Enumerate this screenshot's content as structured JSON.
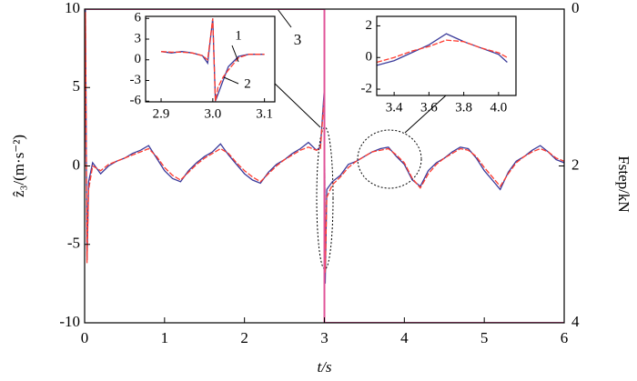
{
  "chart_data": [
    {
      "type": "line",
      "x_label": "t/s",
      "y_label": "ẑ₃/(m·s⁻²)",
      "y2_label": "Fstep/kN",
      "xlim": [
        0,
        6
      ],
      "ylim": [
        -10,
        10
      ],
      "y2lim": [
        4,
        0
      ],
      "xticks": [
        0,
        1,
        2,
        3,
        4,
        5,
        6
      ],
      "yticks": [
        -10,
        -5,
        0,
        5,
        10
      ],
      "y2ticks": [
        0,
        2,
        4
      ],
      "x": [
        0,
        0.01,
        0.03,
        0.05,
        0.1,
        0.2,
        0.3,
        0.4,
        0.5,
        0.6,
        0.7,
        0.8,
        0.9,
        1.0,
        1.1,
        1.2,
        1.3,
        1.4,
        1.5,
        1.6,
        1.7,
        1.8,
        1.9,
        2.0,
        2.1,
        2.2,
        2.3,
        2.4,
        2.5,
        2.6,
        2.7,
        2.8,
        2.9,
        2.95,
        3.0,
        3.01,
        3.03,
        3.1,
        3.2,
        3.3,
        3.4,
        3.5,
        3.6,
        3.7,
        3.8,
        3.9,
        4.0,
        4.1,
        4.2,
        4.3,
        4.4,
        4.5,
        4.6,
        4.7,
        4.8,
        4.9,
        5.0,
        5.1,
        5.2,
        5.3,
        5.4,
        5.5,
        5.6,
        5.7,
        5.8,
        5.9,
        6.0
      ],
      "series": [
        {
          "color": "#3a3a9a",
          "values": [
            0,
            10,
            -6,
            -1,
            0.2,
            -0.5,
            0,
            0.3,
            0.5,
            0.8,
            1.0,
            1.3,
            0.5,
            -0.3,
            -0.8,
            -1.0,
            -0.3,
            0.2,
            0.6,
            0.9,
            1.4,
            0.7,
            0.1,
            -0.5,
            -0.9,
            -1.1,
            -0.4,
            0.1,
            0.4,
            0.8,
            1.1,
            1.5,
            1.0,
            1.2,
            5.0,
            -7.5,
            -1.5,
            -1.0,
            -0.6,
            0.1,
            0.3,
            0.6,
            0.9,
            1.1,
            1.2,
            0.6,
            0.1,
            -0.9,
            -1.3,
            -0.3,
            0.2,
            0.5,
            0.9,
            1.2,
            1.1,
            0.5,
            -0.3,
            -0.9,
            -1.5,
            -0.4,
            0.3,
            0.6,
            1.0,
            1.3,
            0.9,
            0.4,
            0.2
          ]
        },
        {
          "color": "#ff3b2f",
          "dashed": true,
          "values": [
            0,
            9.8,
            -6.2,
            -1.5,
            0,
            -0.3,
            0.1,
            0.3,
            0.5,
            0.7,
            0.9,
            1.1,
            0.6,
            -0.1,
            -0.6,
            -0.9,
            -0.4,
            0.1,
            0.5,
            0.8,
            1.1,
            0.8,
            0.2,
            -0.3,
            -0.7,
            -1.0,
            -0.5,
            0,
            0.4,
            0.7,
            1.0,
            1.2,
            1.0,
            1.1,
            4.5,
            -6.8,
            -2.0,
            -1.2,
            -0.7,
            -0.1,
            0.3,
            0.6,
            0.9,
            1.0,
            1.1,
            0.7,
            0.2,
            -0.8,
            -1.4,
            -0.5,
            0.1,
            0.5,
            0.8,
            1.1,
            1.0,
            0.6,
            -0.1,
            -0.7,
            -1.3,
            -0.5,
            0.2,
            0.6,
            0.9,
            1.1,
            0.9,
            0.5,
            0.3
          ]
        },
        {
          "name": "3",
          "color": "#e0559a",
          "axis": "y2",
          "x": [
            0,
            3,
            3,
            6
          ],
          "values": [
            0,
            0,
            4,
            4
          ]
        }
      ]
    },
    {
      "type": "line",
      "xlim": [
        2.87,
        3.12
      ],
      "ylim": [
        -6.1,
        6.3
      ],
      "xticks": [
        2.9,
        {
          "value": 3,
          "label": "3.0"
        },
        3.1
      ],
      "yticks": [
        -6,
        -3,
        0,
        3,
        6
      ],
      "x": [
        2.9,
        2.92,
        2.94,
        2.96,
        2.98,
        2.99,
        3.0,
        3.005,
        3.01,
        3.02,
        3.03,
        3.05,
        3.07,
        3.1
      ],
      "series": [
        {
          "name": "2",
          "color": "#3a3a9a",
          "values": [
            1.2,
            1.0,
            1.2,
            1.0,
            0.6,
            -0.5,
            6,
            -6,
            -5,
            -3,
            -1,
            0.5,
            0.8,
            0.8
          ]
        },
        {
          "name": "1",
          "color": "#ff3b2f",
          "dashed": true,
          "values": [
            1.2,
            1.1,
            1.1,
            1.0,
            0.6,
            0,
            6,
            -6,
            -4,
            -2.5,
            -1.5,
            0.3,
            0.8,
            0.8
          ]
        }
      ]
    },
    {
      "type": "line",
      "xlim": [
        3.3,
        4.1
      ],
      "ylim": [
        -2.4,
        2.6
      ],
      "xticks": [
        3.4,
        3.6,
        3.8,
        {
          "value": 4,
          "label": "4.0"
        }
      ],
      "yticks": [
        -2,
        0,
        2
      ],
      "x": [
        3.3,
        3.4,
        3.5,
        3.6,
        3.7,
        3.8,
        3.9,
        4.0,
        4.05
      ],
      "series": [
        {
          "color": "#3a3a9a",
          "values": [
            -0.5,
            -0.2,
            0.3,
            0.8,
            1.5,
            1.0,
            0.6,
            0.2,
            -0.3
          ]
        },
        {
          "color": "#ff3b2f",
          "dashed": true,
          "values": [
            -0.3,
            0,
            0.4,
            0.7,
            1.1,
            1.0,
            0.6,
            0.3,
            0
          ]
        }
      ]
    }
  ]
}
